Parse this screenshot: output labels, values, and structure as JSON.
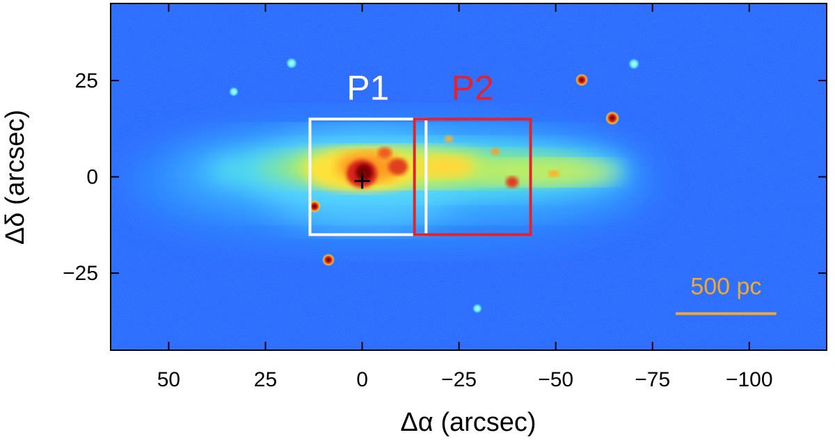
{
  "axes": {
    "x_label": "Δα (arcsec)",
    "y_label": "Δδ (arcsec)",
    "x_range": [
      65,
      -120
    ],
    "y_range": [
      -45,
      45
    ],
    "x_ticks": [
      {
        "value": 50,
        "label": "50"
      },
      {
        "value": 25,
        "label": "25"
      },
      {
        "value": 0,
        "label": "0"
      },
      {
        "value": -25,
        "label": "−25"
      },
      {
        "value": -50,
        "label": "−50"
      },
      {
        "value": -75,
        "label": "−75"
      },
      {
        "value": -100,
        "label": "−100"
      }
    ],
    "y_ticks": [
      {
        "value": 25,
        "label": "25"
      },
      {
        "value": 0,
        "label": "0"
      },
      {
        "value": -25,
        "label": "−25"
      }
    ]
  },
  "regions": [
    {
      "id": "p1",
      "label": "P1",
      "color": "#ffffff",
      "x_range": [
        13.5,
        -16.5
      ],
      "y_range": [
        -15,
        15
      ]
    },
    {
      "id": "p2",
      "label": "P2",
      "color": "#e3232b",
      "x_range": [
        -13.5,
        -43.5
      ],
      "y_range": [
        -15,
        15
      ]
    }
  ],
  "center_marker": {
    "x": 0,
    "y": 0,
    "icon": "plus-icon"
  },
  "scale_bar": {
    "label": "500 pc",
    "color": "#f0a830",
    "x_range": [
      -81,
      -107
    ],
    "y": -35.5
  },
  "colors": {
    "background_blue": "#1a5cff",
    "disk_cyan": "#4fd0ff",
    "disk_yellow": "#ffe23a",
    "core_red": "#d8201a",
    "core_dark": "#7a0000"
  }
}
